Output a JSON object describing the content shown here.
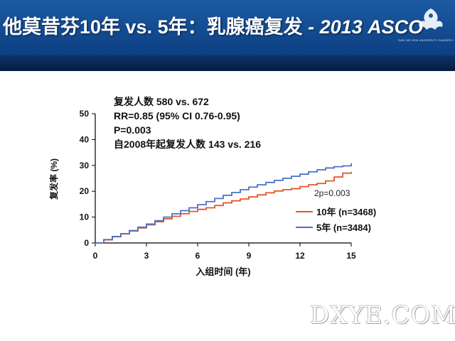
{
  "header": {
    "title_main": "他莫昔芬10年 vs. 5年：乳腺癌复发",
    "title_suffix": " - 2013 ASCO",
    "logo_text": "SUN YAT-SEN UNIVERSITY CANCER CENTER"
  },
  "annotation": {
    "lines": [
      "复发人数 580 vs. 672",
      "RR=0.85 (95%  CI 0.76-0.95)",
      "P=0.003",
      "自2008年起复发人数 143 vs. 216"
    ]
  },
  "watermark": "DXYE.COM",
  "colors": {
    "header": "#1c5aa3",
    "ten_year": "#e2582a",
    "five_year": "#4a72c4"
  },
  "chart_data": {
    "type": "line",
    "xlabel": "入组时间 (年)",
    "ylabel": "复发率 (%)",
    "xlim": [
      0,
      15
    ],
    "ylim": [
      0,
      50
    ],
    "x_ticks": [
      0,
      3,
      6,
      9,
      12,
      15
    ],
    "y_ticks": [
      0,
      10,
      20,
      30,
      40,
      50
    ],
    "p_label": "2p=0.003",
    "legend_position": "lower-right",
    "series": [
      {
        "name": "10年 (n=3468)",
        "color": "#e2582a",
        "x": [
          0,
          0.5,
          1,
          1.5,
          2,
          2.5,
          3,
          3.5,
          4,
          4.5,
          5,
          5.5,
          6,
          6.5,
          7,
          7.5,
          8,
          8.5,
          9,
          9.5,
          10,
          10.5,
          11,
          11.5,
          12,
          12.5,
          13,
          13.5,
          14,
          14.5,
          15
        ],
        "y": [
          0,
          1.2,
          2.4,
          3.5,
          4.6,
          5.8,
          7.0,
          8.2,
          9.3,
          10.3,
          11.3,
          12.2,
          13.0,
          13.6,
          14.5,
          15.5,
          16.3,
          17.0,
          17.8,
          18.6,
          19.4,
          20.1,
          20.6,
          21.0,
          21.8,
          22.5,
          23.0,
          24.0,
          25.5,
          27.0,
          27.5
        ]
      },
      {
        "name": "5年 (n=3484)",
        "color": "#4a72c4",
        "x": [
          0,
          0.5,
          1,
          1.5,
          2,
          2.5,
          3,
          3.5,
          4,
          4.5,
          5,
          5.5,
          6,
          6.5,
          7,
          7.5,
          8,
          8.5,
          9,
          9.5,
          10,
          10.5,
          11,
          11.5,
          12,
          12.5,
          13,
          13.5,
          14,
          14.5,
          15
        ],
        "y": [
          0,
          1.3,
          2.5,
          3.6,
          4.8,
          6.1,
          7.3,
          8.6,
          10.0,
          11.3,
          12.5,
          13.6,
          14.8,
          16.0,
          17.2,
          18.4,
          19.5,
          20.6,
          21.6,
          22.5,
          23.4,
          24.2,
          25.0,
          25.8,
          26.6,
          27.5,
          28.3,
          29.0,
          29.5,
          29.8,
          30.8
        ]
      }
    ]
  }
}
